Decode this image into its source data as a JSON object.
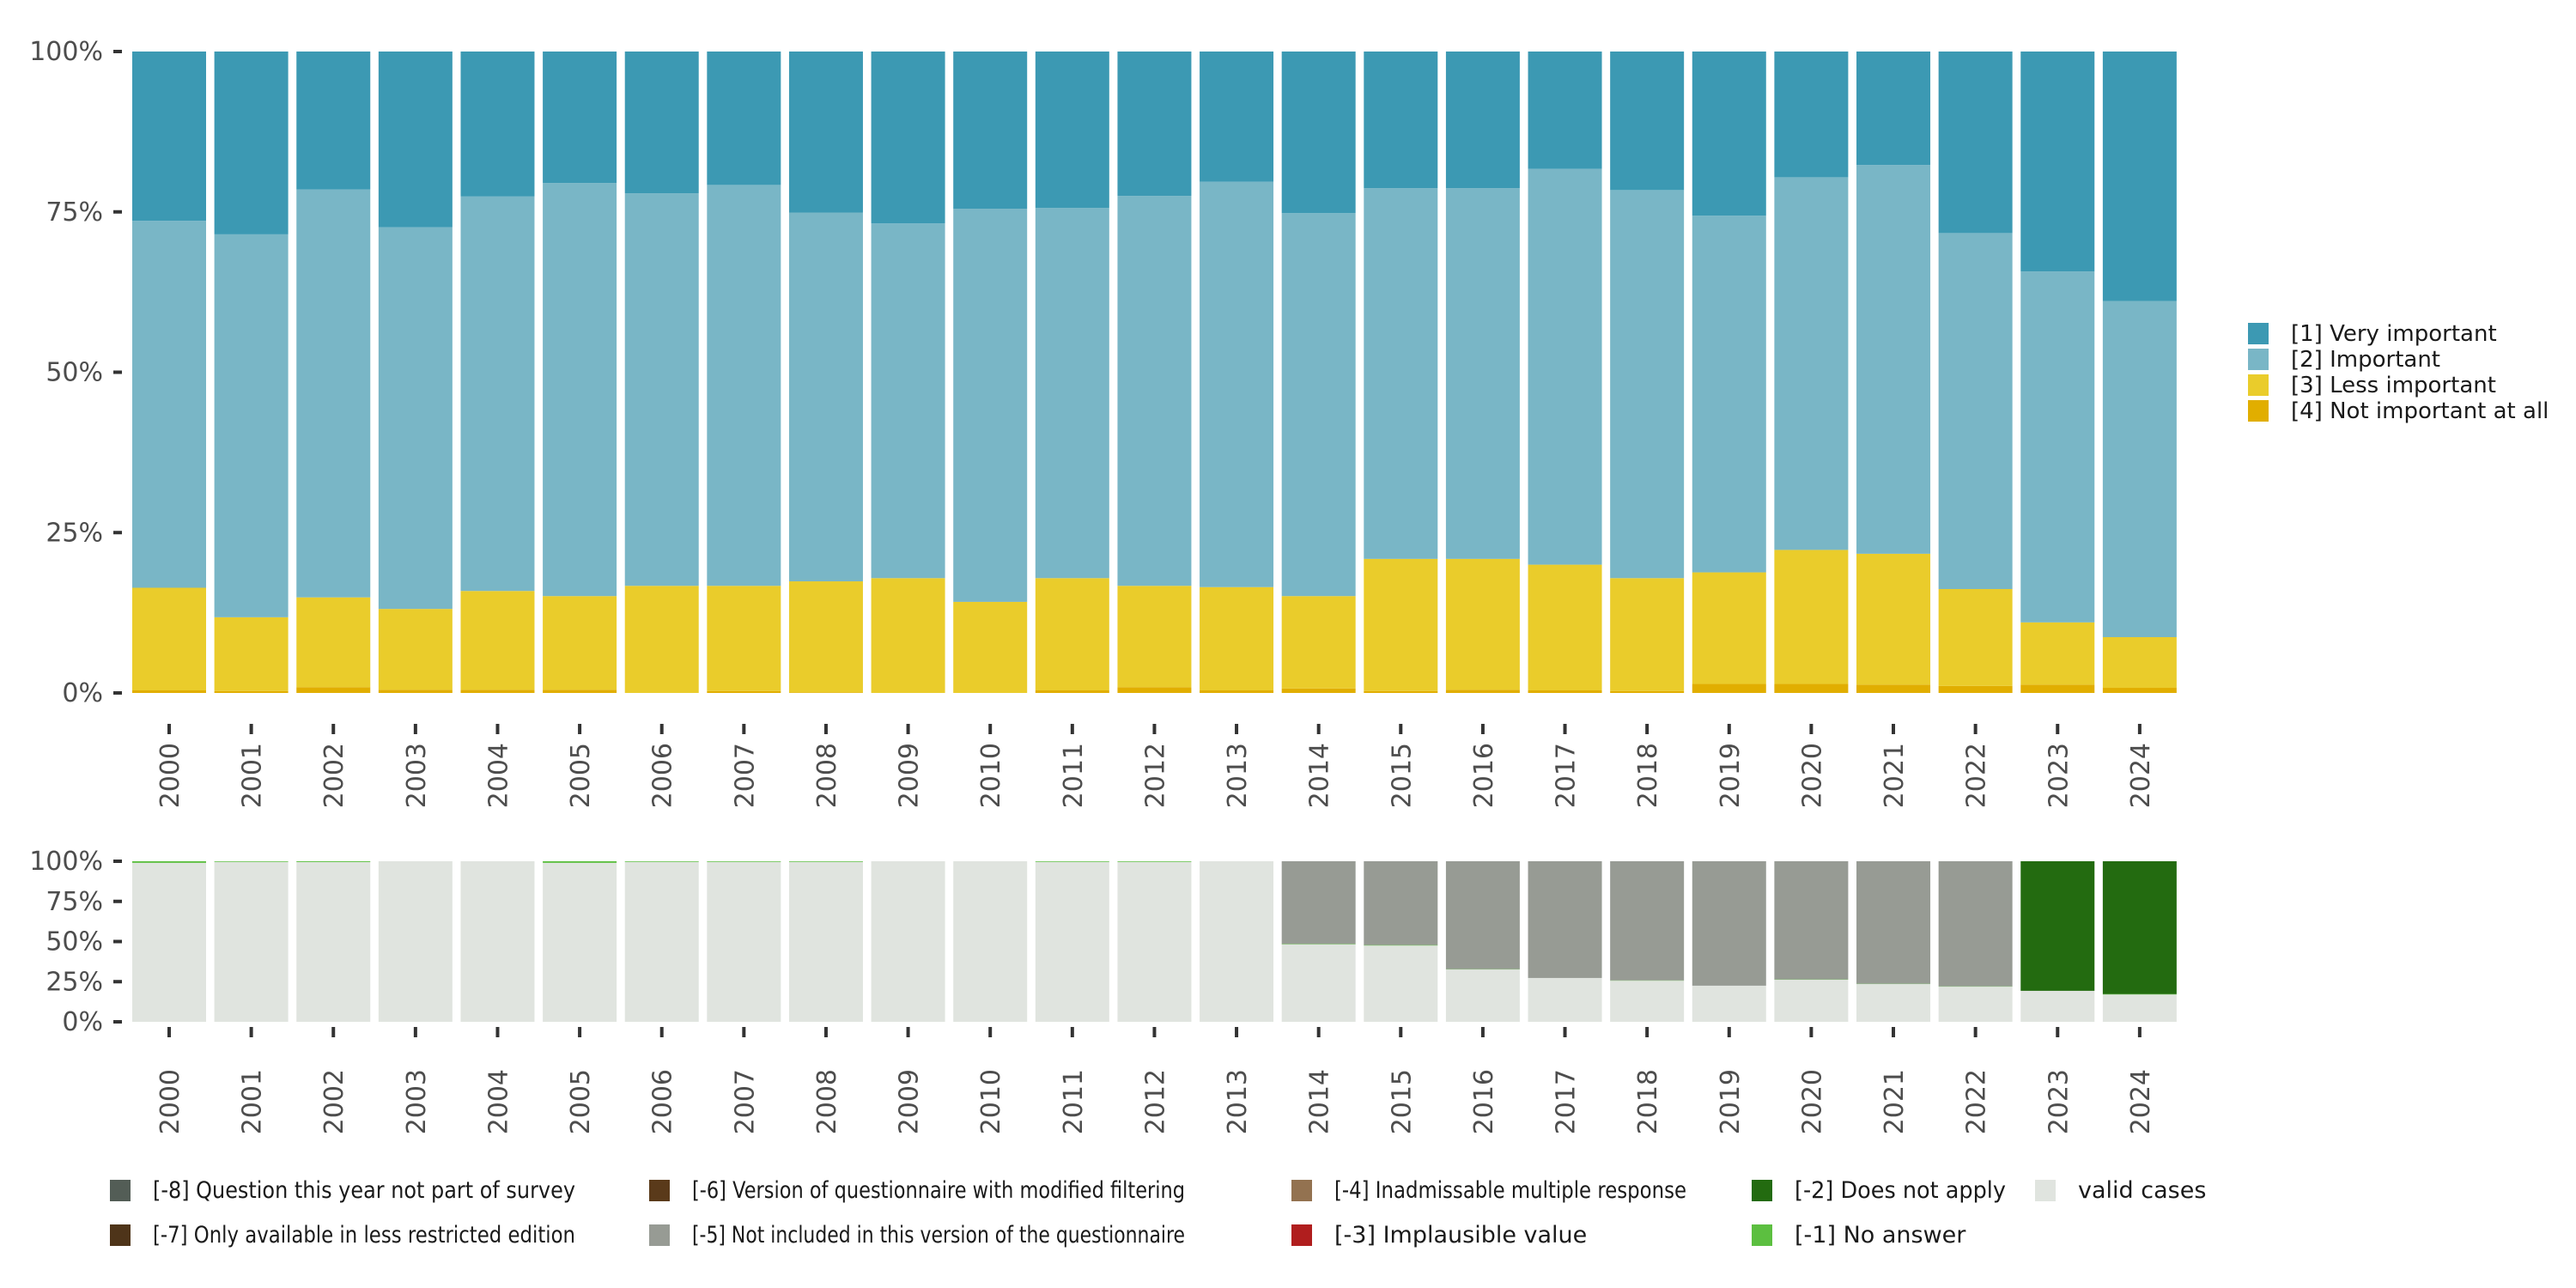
{
  "chart_data": [
    {
      "type": "bar",
      "stacked": true,
      "normalized": true,
      "title": "",
      "xlabel": "",
      "ylabel": "",
      "ylim": [
        0,
        100
      ],
      "y_ticks": [
        "0%",
        "25%",
        "50%",
        "75%",
        "100%"
      ],
      "categories": [
        "2000",
        "2001",
        "2002",
        "2003",
        "2004",
        "2005",
        "2006",
        "2007",
        "2008",
        "2009",
        "2010",
        "2011",
        "2012",
        "2013",
        "2014",
        "2015",
        "2016",
        "2017",
        "2018",
        "2019",
        "2020",
        "2021",
        "2022",
        "2023",
        "2024"
      ],
      "legend_position": "right",
      "series": [
        {
          "name": "[4] Not important at all",
          "color": "#e1ae00",
          "values": [
            0.4,
            0.3,
            0.9,
            0.5,
            0.5,
            0.5,
            0.0,
            0.3,
            0.1,
            0.0,
            0.0,
            0.4,
            0.9,
            0.4,
            0.7,
            0.3,
            0.5,
            0.4,
            0.3,
            1.4,
            1.4,
            1.3,
            1.1,
            1.3,
            0.8
          ]
        },
        {
          "name": "[3] Less important",
          "color": "#eacc2b",
          "values": [
            16.0,
            11.5,
            14.0,
            12.6,
            15.4,
            14.6,
            16.7,
            16.4,
            17.3,
            17.9,
            14.2,
            17.5,
            15.8,
            16.1,
            14.4,
            20.6,
            20.4,
            19.6,
            17.6,
            17.4,
            20.9,
            20.4,
            15.1,
            9.7,
            7.9
          ]
        },
        {
          "name": "[2] Important",
          "color": "#79b6c6",
          "values": [
            57.2,
            59.7,
            63.6,
            59.5,
            61.5,
            64.4,
            61.2,
            62.5,
            57.5,
            55.3,
            61.3,
            57.7,
            60.8,
            63.2,
            59.7,
            57.8,
            57.8,
            61.7,
            60.5,
            55.6,
            58.1,
            60.6,
            55.5,
            54.7,
            52.4
          ]
        },
        {
          "name": "[1] Very important",
          "color": "#3c99b3",
          "values": [
            26.4,
            28.5,
            21.5,
            27.4,
            22.6,
            20.5,
            22.1,
            20.8,
            25.1,
            26.8,
            24.5,
            24.4,
            22.5,
            20.3,
            25.2,
            21.3,
            21.3,
            18.3,
            21.6,
            25.6,
            19.6,
            17.7,
            28.3,
            34.3,
            38.9
          ]
        }
      ]
    },
    {
      "type": "bar",
      "stacked": true,
      "normalized": true,
      "title": "",
      "xlabel": "",
      "ylabel": "",
      "ylim": [
        0,
        100
      ],
      "y_ticks": [
        "0%",
        "25%",
        "50%",
        "75%",
        "100%"
      ],
      "categories": [
        "2000",
        "2001",
        "2002",
        "2003",
        "2004",
        "2005",
        "2006",
        "2007",
        "2008",
        "2009",
        "2010",
        "2011",
        "2012",
        "2013",
        "2014",
        "2015",
        "2016",
        "2017",
        "2018",
        "2019",
        "2020",
        "2021",
        "2022",
        "2023",
        "2024"
      ],
      "legend_position": "bottom",
      "series": [
        {
          "name": "valid cases",
          "color": "#e0e4df",
          "values": [
            99.0,
            99.6,
            99.5,
            100,
            100,
            99.0,
            99.6,
            99.6,
            99.6,
            100,
            100,
            99.6,
            99.6,
            100,
            48.2,
            47.5,
            32.6,
            27.3,
            25.6,
            22.5,
            26.2,
            23.5,
            21.9,
            19.3,
            17.0
          ]
        },
        {
          "name": "[-1] No answer",
          "color": "#5cbf40",
          "values": [
            1.0,
            0.4,
            0.5,
            0,
            0,
            1.0,
            0.4,
            0.4,
            0.4,
            0,
            0,
            0.4,
            0.4,
            0,
            0.3,
            0.3,
            0.2,
            0,
            0.2,
            0,
            0.2,
            0.2,
            0.2,
            0,
            0.3
          ]
        },
        {
          "name": "[-2] Does not apply",
          "color": "#236b10",
          "values": [
            0,
            0,
            0,
            0,
            0,
            0,
            0,
            0,
            0,
            0,
            0,
            0,
            0,
            0,
            0,
            0,
            0,
            0,
            0,
            0,
            0,
            0,
            0,
            80.7,
            82.7
          ]
        },
        {
          "name": "[-3] Implausible value",
          "color": "#b01e1e",
          "values": [
            0,
            0,
            0,
            0,
            0,
            0,
            0,
            0,
            0,
            0,
            0,
            0,
            0,
            0,
            0,
            0,
            0,
            0,
            0,
            0,
            0,
            0,
            0,
            0,
            0
          ]
        },
        {
          "name": "[-4] Inadmissable multiple response",
          "color": "#937250",
          "values": [
            0,
            0,
            0,
            0,
            0,
            0,
            0,
            0,
            0,
            0,
            0,
            0,
            0,
            0,
            0,
            0,
            0,
            0,
            0,
            0,
            0,
            0,
            0,
            0,
            0
          ]
        },
        {
          "name": "[-5] Not included in this version of the questionnaire",
          "color": "#979b94",
          "values": [
            0,
            0,
            0,
            0,
            0,
            0,
            0,
            0,
            0,
            0,
            0,
            0,
            0,
            0,
            51.5,
            52.2,
            67.2,
            72.7,
            74.2,
            77.5,
            73.6,
            76.3,
            77.9,
            0,
            0
          ]
        },
        {
          "name": "[-6] Version of questionnaire with modified filtering",
          "color": "#5a3a1a",
          "values": [
            0,
            0,
            0,
            0,
            0,
            0,
            0,
            0,
            0,
            0,
            0,
            0,
            0,
            0,
            0,
            0,
            0,
            0,
            0,
            0,
            0,
            0,
            0,
            0,
            0
          ]
        },
        {
          "name": "[-7] Only available in less restricted edition",
          "color": "#4e3419",
          "values": [
            0,
            0,
            0,
            0,
            0,
            0,
            0,
            0,
            0,
            0,
            0,
            0,
            0,
            0,
            0,
            0,
            0,
            0,
            0,
            0,
            0,
            0,
            0,
            0,
            0
          ]
        },
        {
          "name": "[-8] Question this year not part of survey",
          "color": "#535d56",
          "values": [
            0,
            0,
            0,
            0,
            0,
            0,
            0,
            0,
            0,
            0,
            0,
            0,
            0,
            0,
            0,
            0,
            0,
            0,
            0,
            0,
            0,
            0,
            0,
            0,
            0
          ]
        }
      ],
      "legend_order": [
        [
          "[-8] Question this year not part of survey",
          "[-6] Version of questionnaire with modified filtering",
          "[-4] Inadmissable multiple response",
          "[-2] Does not apply",
          "valid cases"
        ],
        [
          "[-7] Only available in less restricted edition",
          "[-5] Not included in this version of the questionnaire",
          "[-3] Implausible value",
          "[-1] No answer"
        ]
      ]
    }
  ]
}
